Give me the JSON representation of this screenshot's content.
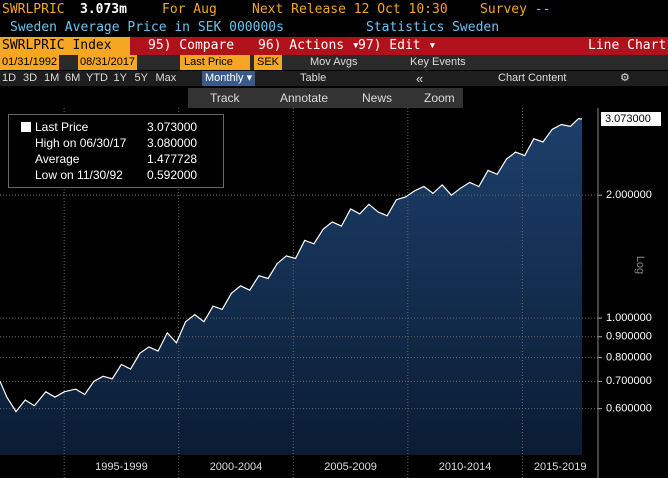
{
  "header": {
    "ticker": "SWRLPRIC",
    "price": "3.073m",
    "period_label": "For Aug",
    "release": "Next Release 12 Oct 10:30",
    "survey": "Survey --",
    "description": "Sweden Average Price in SEK 000000s",
    "source": "Statistics Sweden"
  },
  "menu": {
    "security": "SWRLPRIC Index",
    "items": [
      "95) Compare",
      "96) Actions ▾",
      "97) Edit ▾"
    ],
    "view": "Line Chart"
  },
  "controls": {
    "start": "01/31/1992",
    "end": "08/31/2017",
    "field": "Last Price",
    "currency": "SEK",
    "mov_avgs": "Mov Avgs",
    "key_events": "Key Events",
    "frequency": "Monthly ▾",
    "table": "Table",
    "collapse": "«",
    "chart_content": "Chart Content",
    "periods": [
      "1D",
      "3D",
      "1M",
      "6M",
      "YTD",
      "1Y",
      "5Y",
      "Max"
    ]
  },
  "tools": [
    "Track",
    "Annotate",
    "News",
    "Zoom"
  ],
  "chart_data": {
    "type": "line",
    "log_scale": true,
    "grid": true,
    "scale_label": "Log",
    "last_value_label": "3.073000",
    "legend_entries": [
      {
        "label": "Last Price",
        "value": "3.073000"
      },
      {
        "label": "High on 06/30/17",
        "value": "3.080000"
      },
      {
        "label": "Average",
        "value": "1.477728"
      },
      {
        "label": "Low on 11/30/92",
        "value": "0.592000"
      }
    ],
    "x": [
      1992.2,
      1992.5,
      1992.9,
      1993.3,
      1993.7,
      1994.2,
      1994.6,
      1995.0,
      1995.5,
      1995.9,
      1996.3,
      1996.7,
      1997.1,
      1997.5,
      1997.9,
      1998.3,
      1998.7,
      1999.1,
      1999.5,
      1999.9,
      2000.3,
      2000.7,
      2001.1,
      2001.5,
      2001.9,
      2002.3,
      2002.7,
      2003.1,
      2003.5,
      2003.9,
      2004.3,
      2004.7,
      2005.1,
      2005.5,
      2005.9,
      2006.3,
      2006.7,
      2007.1,
      2007.5,
      2007.9,
      2008.3,
      2008.7,
      2009.1,
      2009.5,
      2009.9,
      2010.3,
      2010.7,
      2011.1,
      2011.5,
      2011.9,
      2012.3,
      2012.7,
      2013.1,
      2013.5,
      2013.9,
      2014.3,
      2014.7,
      2015.1,
      2015.5,
      2015.9,
      2016.3,
      2016.7,
      2017.1,
      2017.45,
      2017.6
    ],
    "series": [
      {
        "name": "Last Price",
        "color": "#ffffff",
        "values": [
          0.7,
          0.64,
          0.59,
          0.63,
          0.61,
          0.66,
          0.64,
          0.66,
          0.67,
          0.65,
          0.7,
          0.72,
          0.71,
          0.77,
          0.75,
          0.82,
          0.85,
          0.83,
          0.92,
          0.87,
          0.98,
          1.02,
          0.98,
          1.07,
          1.05,
          1.15,
          1.2,
          1.17,
          1.27,
          1.25,
          1.36,
          1.42,
          1.4,
          1.55,
          1.52,
          1.65,
          1.72,
          1.68,
          1.85,
          1.8,
          1.9,
          1.82,
          1.78,
          1.95,
          1.98,
          2.05,
          2.1,
          2.02,
          2.12,
          2.0,
          2.08,
          2.15,
          2.1,
          2.3,
          2.25,
          2.45,
          2.55,
          2.5,
          2.75,
          2.7,
          2.9,
          2.98,
          2.95,
          3.08,
          3.073
        ]
      }
    ],
    "xlim": [
      1992.2,
      2018.3
    ],
    "xticks": [
      1995,
      2000,
      2005,
      2010,
      2015
    ],
    "x_labels": [
      "1995-1999",
      "2000-2004",
      "2005-2009",
      "2010-2014",
      "2015-2019"
    ],
    "ylim": [
      0.462,
      3.27
    ],
    "yticks": [
      {
        "value": 0.6,
        "label": "0.600000"
      },
      {
        "value": 0.7,
        "label": "0.700000"
      },
      {
        "value": 0.8,
        "label": "0.800000"
      },
      {
        "value": 0.9,
        "label": "0.900000"
      },
      {
        "value": 1.0,
        "label": "1.000000"
      },
      {
        "value": 2.0,
        "label": "2.000000"
      }
    ]
  }
}
